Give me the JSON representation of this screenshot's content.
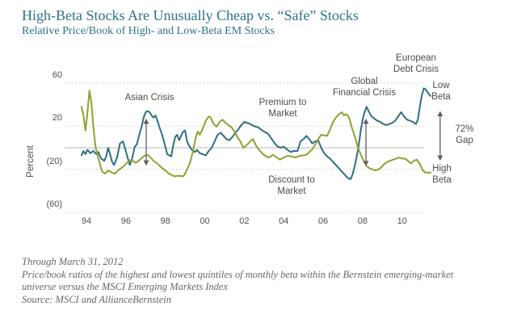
{
  "header": {
    "title": "High-Beta Stocks Are Unusually Cheap vs. “Safe” Stocks",
    "subtitle": "Relative Price/Book of High- and Low-Beta EM Stocks"
  },
  "chart_data": {
    "type": "line",
    "title": "High-Beta Stocks Are Unusually Cheap vs. “Safe” Stocks",
    "subtitle": "Relative Price/Book of High- and Low-Beta EM Stocks",
    "xlabel": "",
    "ylabel": "Percent",
    "ylim": [
      -60,
      60
    ],
    "grid": "dotted horizontal at 60, 20, -20, -60; solid line at 0",
    "y_ticks": [
      {
        "label": "60",
        "value": 60
      },
      {
        "label": "20",
        "value": 20
      },
      {
        "label": "(20)",
        "value": -20
      },
      {
        "label": "(60)",
        "value": -60
      }
    ],
    "x_ticks": [
      {
        "label": "94",
        "year": 1994
      },
      {
        "label": "96",
        "year": 1996
      },
      {
        "label": "98",
        "year": 1998
      },
      {
        "label": "00",
        "year": 2000
      },
      {
        "label": "02",
        "year": 2002
      },
      {
        "label": "04",
        "year": 2004
      },
      {
        "label": "06",
        "year": 2006
      },
      {
        "label": "08",
        "year": 2008
      },
      {
        "label": "10",
        "year": 2010
      }
    ],
    "series": [
      {
        "name": "Low Beta",
        "color": "#2e7081",
        "points": [
          [
            1993.75,
            -7
          ],
          [
            1993.85,
            -3
          ],
          [
            1993.95,
            -6
          ],
          [
            1994.05,
            -2
          ],
          [
            1994.2,
            -5
          ],
          [
            1994.35,
            -3
          ],
          [
            1994.5,
            -6
          ],
          [
            1994.6,
            -4
          ],
          [
            1994.75,
            -10
          ],
          [
            1994.9,
            -12
          ],
          [
            1995.0,
            -8
          ],
          [
            1995.1,
            0
          ],
          [
            1995.2,
            -6
          ],
          [
            1995.3,
            -13
          ],
          [
            1995.4,
            -16
          ],
          [
            1995.55,
            -9
          ],
          [
            1995.7,
            4
          ],
          [
            1995.85,
            6
          ],
          [
            1995.95,
            0
          ],
          [
            1996.1,
            -10
          ],
          [
            1996.2,
            -16
          ],
          [
            1996.3,
            -11
          ],
          [
            1996.45,
            1
          ],
          [
            1996.55,
            3
          ],
          [
            1996.65,
            10
          ],
          [
            1996.8,
            20
          ],
          [
            1996.9,
            28
          ],
          [
            1997.0,
            33
          ],
          [
            1997.1,
            34
          ],
          [
            1997.2,
            33
          ],
          [
            1997.3,
            30
          ],
          [
            1997.4,
            28
          ],
          [
            1997.5,
            30
          ],
          [
            1997.6,
            25
          ],
          [
            1997.7,
            19
          ],
          [
            1997.8,
            14
          ],
          [
            1997.9,
            8
          ],
          [
            1998.0,
            1
          ],
          [
            1998.1,
            -6
          ],
          [
            1998.2,
            -7
          ],
          [
            1998.3,
            -8
          ],
          [
            1998.4,
            2
          ],
          [
            1998.5,
            10
          ],
          [
            1998.6,
            12
          ],
          [
            1998.7,
            7
          ],
          [
            1998.8,
            11
          ],
          [
            1998.9,
            15
          ],
          [
            1999.0,
            16
          ],
          [
            1999.1,
            6
          ],
          [
            1999.2,
            2
          ],
          [
            1999.35,
            -2
          ],
          [
            1999.5,
            -4
          ],
          [
            1999.6,
            -2
          ],
          [
            1999.75,
            -5
          ],
          [
            1999.9,
            -6
          ],
          [
            2000.05,
            -7
          ],
          [
            2000.2,
            -3
          ],
          [
            2000.35,
            0
          ],
          [
            2000.5,
            6
          ],
          [
            2000.65,
            12
          ],
          [
            2000.8,
            14
          ],
          [
            2000.95,
            11
          ],
          [
            2001.1,
            8
          ],
          [
            2001.25,
            7
          ],
          [
            2001.4,
            10
          ],
          [
            2001.55,
            14
          ],
          [
            2001.7,
            17
          ],
          [
            2001.85,
            21
          ],
          [
            2002.0,
            24
          ],
          [
            2002.15,
            23
          ],
          [
            2002.3,
            22
          ],
          [
            2002.5,
            20
          ],
          [
            2002.7,
            19
          ],
          [
            2002.85,
            17
          ],
          [
            2003.0,
            15
          ],
          [
            2003.2,
            13
          ],
          [
            2003.4,
            8
          ],
          [
            2003.55,
            4
          ],
          [
            2003.7,
            1
          ],
          [
            2003.85,
            0
          ],
          [
            2004.0,
            1
          ],
          [
            2004.2,
            -2
          ],
          [
            2004.35,
            -4
          ],
          [
            2004.5,
            -3
          ],
          [
            2004.7,
            -3
          ],
          [
            2004.85,
            6
          ],
          [
            2005.0,
            8
          ],
          [
            2005.15,
            11
          ],
          [
            2005.3,
            8
          ],
          [
            2005.45,
            4
          ],
          [
            2005.6,
            6
          ],
          [
            2005.75,
            7
          ],
          [
            2005.9,
            0
          ],
          [
            2006.05,
            -5
          ],
          [
            2006.2,
            -8
          ],
          [
            2006.35,
            -10
          ],
          [
            2006.5,
            -13
          ],
          [
            2006.65,
            -16
          ],
          [
            2006.8,
            -19
          ],
          [
            2006.95,
            -22
          ],
          [
            2007.1,
            -25
          ],
          [
            2007.25,
            -28
          ],
          [
            2007.4,
            -29
          ],
          [
            2007.5,
            -24
          ],
          [
            2007.6,
            -17
          ],
          [
            2007.7,
            -8
          ],
          [
            2007.8,
            2
          ],
          [
            2007.9,
            15
          ],
          [
            2008.0,
            26
          ],
          [
            2008.1,
            33
          ],
          [
            2008.2,
            38
          ],
          [
            2008.3,
            34
          ],
          [
            2008.45,
            29
          ],
          [
            2008.6,
            27
          ],
          [
            2008.75,
            25
          ],
          [
            2008.9,
            24
          ],
          [
            2009.05,
            22
          ],
          [
            2009.2,
            21
          ],
          [
            2009.35,
            22
          ],
          [
            2009.5,
            23
          ],
          [
            2009.65,
            25
          ],
          [
            2009.8,
            29
          ],
          [
            2009.95,
            33
          ],
          [
            2010.1,
            29
          ],
          [
            2010.25,
            26
          ],
          [
            2010.4,
            25
          ],
          [
            2010.55,
            24
          ],
          [
            2010.7,
            22
          ],
          [
            2010.8,
            26
          ],
          [
            2010.9,
            38
          ],
          [
            2011.0,
            48
          ],
          [
            2011.1,
            55
          ],
          [
            2011.2,
            54
          ],
          [
            2011.3,
            51
          ],
          [
            2011.45,
            48
          ]
        ]
      },
      {
        "name": "High Beta",
        "color": "#8ca32f",
        "points": [
          [
            1993.75,
            38
          ],
          [
            1993.85,
            30
          ],
          [
            1993.95,
            16
          ],
          [
            1994.05,
            32
          ],
          [
            1994.15,
            53
          ],
          [
            1994.25,
            42
          ],
          [
            1994.35,
            20
          ],
          [
            1994.45,
            2
          ],
          [
            1994.55,
            -6
          ],
          [
            1994.7,
            -16
          ],
          [
            1994.8,
            -22
          ],
          [
            1994.95,
            -24
          ],
          [
            1995.1,
            -21
          ],
          [
            1995.2,
            -22
          ],
          [
            1995.3,
            -23
          ],
          [
            1995.45,
            -24
          ],
          [
            1995.6,
            -21
          ],
          [
            1995.75,
            -19
          ],
          [
            1995.9,
            -17
          ],
          [
            1996.05,
            -14
          ],
          [
            1996.2,
            -11.5
          ],
          [
            1996.35,
            -12
          ],
          [
            1996.5,
            -14
          ],
          [
            1996.65,
            -12
          ],
          [
            1996.8,
            -9.5
          ],
          [
            1996.95,
            -7.5
          ],
          [
            1997.1,
            -6.5
          ],
          [
            1997.25,
            -9
          ],
          [
            1997.4,
            -12
          ],
          [
            1997.55,
            -14
          ],
          [
            1997.7,
            -16.5
          ],
          [
            1997.85,
            -19
          ],
          [
            1998.0,
            -21
          ],
          [
            1998.15,
            -23.5
          ],
          [
            1998.3,
            -25
          ],
          [
            1998.45,
            -26.5
          ],
          [
            1998.6,
            -26
          ],
          [
            1998.75,
            -26
          ],
          [
            1998.9,
            -26.5
          ],
          [
            1999.0,
            -24
          ],
          [
            1999.1,
            -20
          ],
          [
            1999.25,
            -14
          ],
          [
            1999.4,
            -3
          ],
          [
            1999.55,
            10
          ],
          [
            1999.65,
            15
          ],
          [
            1999.75,
            12
          ],
          [
            1999.9,
            18
          ],
          [
            2000.05,
            25
          ],
          [
            2000.2,
            29
          ],
          [
            2000.3,
            28
          ],
          [
            2000.45,
            22
          ],
          [
            2000.6,
            19.5
          ],
          [
            2000.75,
            24
          ],
          [
            2000.9,
            26
          ],
          [
            2001.05,
            23
          ],
          [
            2001.2,
            21
          ],
          [
            2001.35,
            19
          ],
          [
            2001.5,
            15
          ],
          [
            2001.65,
            10
          ],
          [
            2001.8,
            6
          ],
          [
            2001.95,
            0
          ],
          [
            2002.1,
            2
          ],
          [
            2002.3,
            6
          ],
          [
            2002.45,
            8
          ],
          [
            2002.6,
            2
          ],
          [
            2002.75,
            -2
          ],
          [
            2002.9,
            -5
          ],
          [
            2003.1,
            -8
          ],
          [
            2003.25,
            -9
          ],
          [
            2003.45,
            -6.5
          ],
          [
            2003.65,
            -9
          ],
          [
            2003.8,
            -11
          ],
          [
            2004.0,
            -9
          ],
          [
            2004.2,
            -7.5
          ],
          [
            2004.4,
            -8
          ],
          [
            2004.6,
            -9
          ],
          [
            2004.8,
            -7.5
          ],
          [
            2005.0,
            -7
          ],
          [
            2005.15,
            -6.5
          ],
          [
            2005.3,
            -4
          ],
          [
            2005.45,
            -1.5
          ],
          [
            2005.6,
            3
          ],
          [
            2005.75,
            8
          ],
          [
            2005.9,
            12
          ],
          [
            2006.05,
            11.5
          ],
          [
            2006.2,
            11
          ],
          [
            2006.35,
            17
          ],
          [
            2006.5,
            24
          ],
          [
            2006.65,
            28
          ],
          [
            2006.8,
            31
          ],
          [
            2006.95,
            33
          ],
          [
            2007.05,
            30
          ],
          [
            2007.15,
            31
          ],
          [
            2007.25,
            30
          ],
          [
            2007.35,
            26
          ],
          [
            2007.45,
            19
          ],
          [
            2007.6,
            11
          ],
          [
            2007.75,
            1
          ],
          [
            2007.9,
            -6
          ],
          [
            2008.05,
            -12
          ],
          [
            2008.2,
            -17
          ],
          [
            2008.35,
            -19
          ],
          [
            2008.5,
            -20
          ],
          [
            2008.65,
            -21
          ],
          [
            2008.8,
            -20
          ],
          [
            2008.95,
            -18
          ],
          [
            2009.1,
            -15
          ],
          [
            2009.25,
            -13
          ],
          [
            2009.4,
            -12
          ],
          [
            2009.55,
            -11
          ],
          [
            2009.7,
            -10
          ],
          [
            2009.85,
            -9
          ],
          [
            2010.0,
            -10
          ],
          [
            2010.15,
            -10
          ],
          [
            2010.3,
            -12
          ],
          [
            2010.45,
            -14.5
          ],
          [
            2010.6,
            -12
          ],
          [
            2010.75,
            -11
          ],
          [
            2010.9,
            -15
          ],
          [
            2011.05,
            -21
          ],
          [
            2011.2,
            -23
          ],
          [
            2011.35,
            -23
          ],
          [
            2011.45,
            -23
          ]
        ]
      }
    ],
    "arrows": [
      {
        "name": "asian-crisis-range",
        "year": 1997.03,
        "from": 27,
        "to": -16.5
      },
      {
        "name": "global-financial-crisis-range",
        "year": 2008.17,
        "from": 27,
        "to": -17
      },
      {
        "name": "gap-range",
        "year": 2011.93,
        "from": 34,
        "to": -12
      }
    ]
  },
  "annotations": {
    "asian_crisis": "Asian Crisis",
    "premium": "Premium to\nMarket",
    "discount": "Discount to\nMarket",
    "global_financial_crisis": "Global\nFinancial Crisis",
    "european_debt_crisis": "European\nDebt Crisis",
    "low_beta": "Low\nBeta",
    "high_beta": "High\nBeta",
    "gap": "72%\nGap"
  },
  "footer": {
    "through": "Through March 31, 2012",
    "note": "Price/book ratios of the highest and lowest quintiles of monthly beta within the Bernstein emerging-market universe versus the MSCI Emerging Markets Index",
    "source": "Source: MSCI and AllianceBernstein"
  },
  "colors": {
    "low_beta_line": "#2e7081",
    "high_beta_line": "#8ca32f",
    "title_text": "#2e7384",
    "annotation_text": "#4c4c4c",
    "gridline": "#c9c9c9",
    "zero_line": "#b9b9b9",
    "arrow": "#5f5f5f",
    "tick_text": "#4f4f4f",
    "footer_text": "#666666"
  }
}
